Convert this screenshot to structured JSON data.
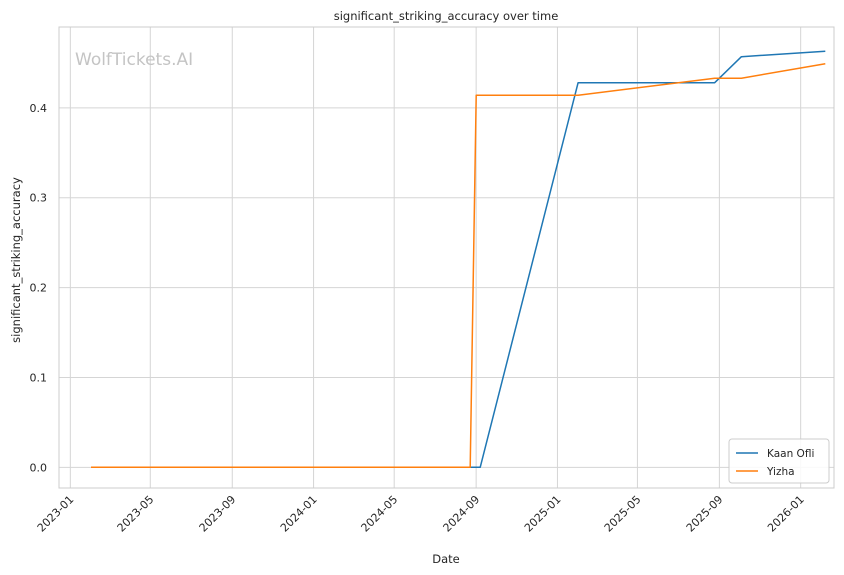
{
  "chart_data": {
    "type": "line",
    "title": "significant_striking_accuracy over time",
    "xlabel": "Date",
    "ylabel": "significant_striking_accuracy",
    "watermark": "WolfTickets.AI",
    "xlim": [
      "2022-12-15",
      "2026-02-20"
    ],
    "ylim": [
      -0.023,
      0.49
    ],
    "x_ticks": [
      "2023-01",
      "2023-05",
      "2023-09",
      "2024-01",
      "2024-05",
      "2024-09",
      "2025-01",
      "2025-05",
      "2025-09",
      "2026-01"
    ],
    "y_ticks": [
      "0.0",
      "0.1",
      "0.2",
      "0.3",
      "0.4"
    ],
    "grid": true,
    "legend_position": "bottom-right",
    "series": [
      {
        "name": "Kaan Ofli",
        "color": "#1f77b4",
        "points": [
          {
            "x": "2023-02-01",
            "y": 0.0
          },
          {
            "x": "2024-08-20",
            "y": 0.0
          },
          {
            "x": "2024-09-07",
            "y": 0.0
          },
          {
            "x": "2025-02-01",
            "y": 0.428
          },
          {
            "x": "2025-08-25",
            "y": 0.428
          },
          {
            "x": "2025-10-04",
            "y": 0.457
          },
          {
            "x": "2026-02-07",
            "y": 0.463
          }
        ]
      },
      {
        "name": "Yizha",
        "color": "#ff7f0e",
        "points": [
          {
            "x": "2023-02-01",
            "y": 0.0
          },
          {
            "x": "2024-08-23",
            "y": 0.0
          },
          {
            "x": "2024-09-01",
            "y": 0.414
          },
          {
            "x": "2025-02-01",
            "y": 0.414
          },
          {
            "x": "2025-08-25",
            "y": 0.433
          },
          {
            "x": "2025-10-04",
            "y": 0.433
          },
          {
            "x": "2026-02-07",
            "y": 0.449
          }
        ]
      }
    ]
  }
}
